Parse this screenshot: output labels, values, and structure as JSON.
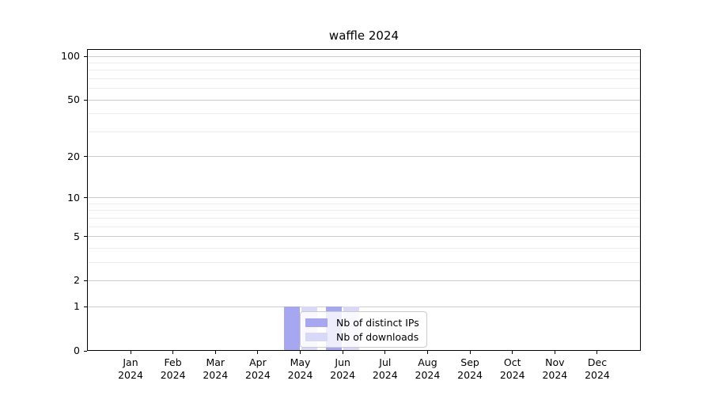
{
  "title": "waffle 2024",
  "chart_data": {
    "type": "bar",
    "title": "waffle 2024",
    "x_year": "2024",
    "categories": [
      "Jan 2024",
      "Feb 2024",
      "Mar 2024",
      "Apr 2024",
      "May 2024",
      "Jun 2024",
      "Jul 2024",
      "Aug 2024",
      "Sep 2024",
      "Oct 2024",
      "Nov 2024",
      "Dec 2024"
    ],
    "months": [
      "Jan",
      "Feb",
      "Mar",
      "Apr",
      "May",
      "Jun",
      "Jul",
      "Aug",
      "Sep",
      "Oct",
      "Nov",
      "Dec"
    ],
    "series": [
      {
        "name": "Nb of distinct IPs",
        "color": "#a6a6f1",
        "values": [
          0,
          0,
          0,
          0,
          1,
          1,
          0,
          0,
          0,
          0,
          0,
          0
        ]
      },
      {
        "name": "Nb of downloads",
        "color": "#d9d9f7",
        "values": [
          0,
          0,
          0,
          0,
          1,
          1,
          0,
          0,
          0,
          0,
          0,
          0
        ]
      }
    ],
    "y_axis": {
      "scale": "log(1+y)",
      "major_ticks": [
        0,
        1,
        2,
        5,
        10,
        20,
        50,
        100
      ],
      "minor_ticks": [
        3,
        4,
        6,
        7,
        8,
        9,
        30,
        40,
        60,
        70,
        80,
        90
      ],
      "ylim_top_approx": 112
    },
    "legend": {
      "position": "lower center inside plot"
    },
    "grid": "on",
    "colors": {
      "major_grid": "#cccccc",
      "minor_grid": "#ececec",
      "spine": "#000000",
      "background": "#ffffff"
    }
  }
}
